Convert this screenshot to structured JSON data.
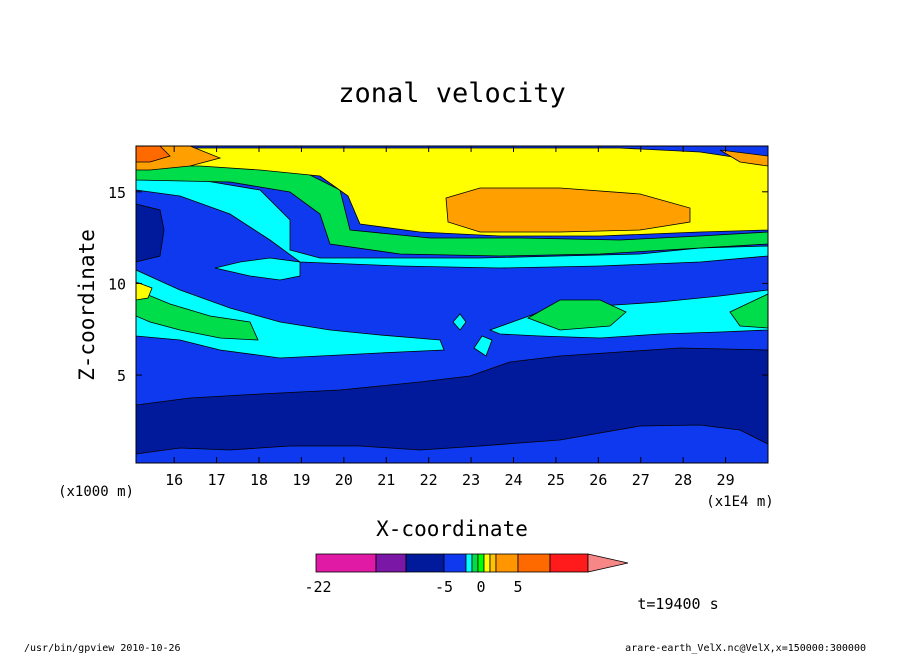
{
  "chart_data": {
    "type": "heatmap",
    "title": "zonal velocity",
    "xlabel": "X-coordinate",
    "ylabel": "Z-coordinate",
    "x_unit_label": "(x1E4 m)",
    "y_unit_label": "(x1000 m)",
    "xlim": [
      15.1,
      30.0
    ],
    "ylim": [
      0.2,
      17.5
    ],
    "x_ticks": [
      "16",
      "17",
      "18",
      "19",
      "20",
      "21",
      "22",
      "23",
      "24",
      "25",
      "26",
      "27",
      "28",
      "29"
    ],
    "y_ticks": [
      "5",
      "10",
      "15"
    ],
    "x_tick_values": [
      16,
      17,
      18,
      19,
      20,
      21,
      22,
      23,
      24,
      25,
      26,
      27,
      28,
      29
    ],
    "y_tick_values": [
      5,
      10,
      15
    ],
    "colorbar": {
      "labels": [
        "-22",
        "-5",
        "0",
        "5"
      ],
      "label_values": [
        -22,
        -5,
        0,
        5
      ],
      "colors": [
        "#e11aa6",
        "#7a17a7",
        "#001a9b",
        "#0f39ee",
        "#01ffff",
        "#00dd4b",
        "#00ff00",
        "#ffff00",
        "#ffc300",
        "#ff9600",
        "#ff6a00",
        "#ff1b1b",
        "#f78686"
      ]
    },
    "annotation_time": "t=19400 s",
    "contour_levels_colors": {
      "level_-8": "#001a9b",
      "level_-5": "#0f39ee",
      "level_-2": "#01ffff",
      "level_0": "#00dd4b",
      "level_2": "#ffff00",
      "level_4": "#ffa000",
      "level_6": "#ff6a00"
    }
  },
  "footer": {
    "left": "/usr/bin/gpview   2010-10-26",
    "right": "arare-earth_VelX.nc@VelX,x=150000:300000"
  }
}
